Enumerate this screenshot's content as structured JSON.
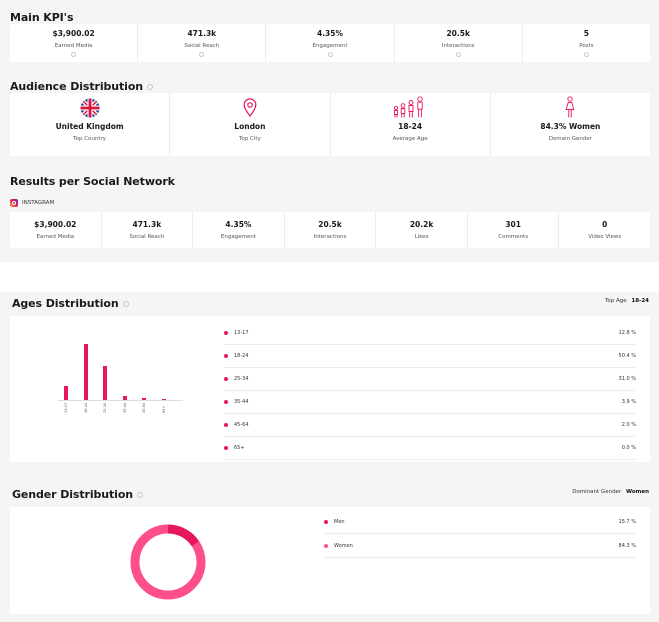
{
  "main_kpis": {
    "title": "Main KPI's",
    "items": [
      {
        "value": "$3,900.02",
        "label": "Earned Media"
      },
      {
        "value": "471.3k",
        "label": "Social Reach"
      },
      {
        "value": "4.35%",
        "label": "Engagement"
      },
      {
        "value": "20.5k",
        "label": "Interactions"
      },
      {
        "value": "5",
        "label": "Posts"
      }
    ]
  },
  "audience": {
    "title": "Audience Distribution",
    "items": [
      {
        "value": "United Kingdom",
        "label": "Top Country",
        "icon": "uk-flag-icon"
      },
      {
        "value": "London",
        "label": "Top City",
        "icon": "map-pin-icon"
      },
      {
        "value": "18-24",
        "label": "Average Age",
        "icon": "age-figures-icon"
      },
      {
        "value": "84.3% Women",
        "label": "Domain Gender",
        "icon": "woman-icon"
      }
    ]
  },
  "results": {
    "title": "Results per Social Network",
    "network": "INSTAGRAM",
    "items": [
      {
        "value": "$3,900.02",
        "label": "Earned Media"
      },
      {
        "value": "471.3k",
        "label": "Social Reach"
      },
      {
        "value": "4.35%",
        "label": "Engagement"
      },
      {
        "value": "20.5k",
        "label": "Interactions"
      },
      {
        "value": "20.2k",
        "label": "Likes"
      },
      {
        "value": "301",
        "label": "Comments"
      },
      {
        "value": "0",
        "label": "Video Views"
      }
    ]
  },
  "ages": {
    "title": "Ages Distribution",
    "top_label": "Top Age",
    "top_value": "18-24",
    "rows": [
      {
        "label": "13-17",
        "pct": "12.8 %"
      },
      {
        "label": "18-24",
        "pct": "50.4 %"
      },
      {
        "label": "25-34",
        "pct": "31.0 %"
      },
      {
        "label": "35-44",
        "pct": "3.9 %"
      },
      {
        "label": "45-64",
        "pct": "2.0 %"
      },
      {
        "label": "65+",
        "pct": "0.0 %"
      }
    ]
  },
  "gender": {
    "title": "Gender Distribution",
    "dominant_label": "Dominant Gender",
    "dominant_value": "Women",
    "rows": [
      {
        "label": "Men",
        "pct": "15.7 %"
      },
      {
        "label": "Women",
        "pct": "84.3 %"
      }
    ]
  },
  "colors": {
    "accent": "#e8175d",
    "women": "#ff4f8b",
    "background": "#f5f5f5"
  },
  "chart_data": [
    {
      "type": "bar",
      "categories": [
        "13-17",
        "18-24",
        "25-34",
        "35-44",
        "45-64",
        "65+"
      ],
      "values": [
        12.8,
        50.4,
        31.0,
        3.9,
        2.0,
        0.0
      ]
    },
    {
      "type": "pie",
      "categories": [
        "Men",
        "Women"
      ],
      "values": [
        15.7,
        84.3
      ]
    }
  ]
}
